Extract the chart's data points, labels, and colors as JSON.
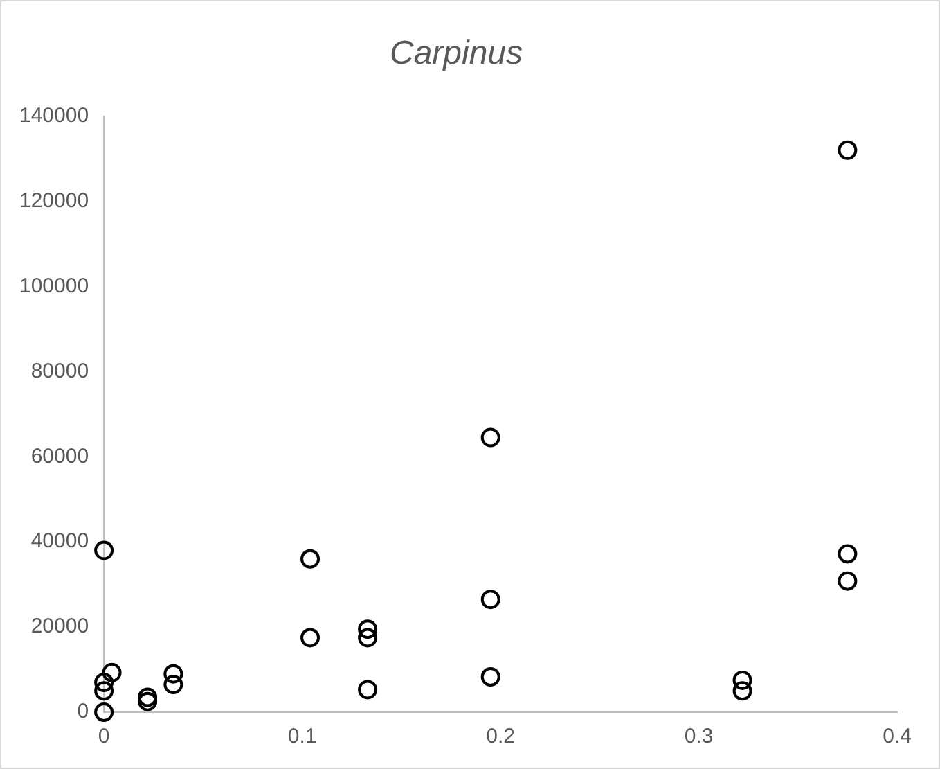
{
  "chart_data": {
    "type": "scatter",
    "title": "Carpinus",
    "x": [
      0,
      0,
      0,
      0,
      0.004,
      0.022,
      0.022,
      0.035,
      0.035,
      0.104,
      0.104,
      0.133,
      0.133,
      0.133,
      0.195,
      0.195,
      0.195,
      0.322,
      0.322,
      0.375,
      0.375,
      0.375
    ],
    "values": [
      38000,
      7000,
      5000,
      0,
      9300,
      3500,
      2500,
      9000,
      6500,
      36000,
      17500,
      19500,
      17500,
      5300,
      64500,
      26500,
      8300,
      7500,
      5000,
      132000,
      37200,
      30800
    ],
    "color": "#000000",
    "marker": "circle",
    "xlim": [
      0,
      0.4
    ],
    "xticks": [
      0,
      0.1,
      0.2,
      0.3,
      0.4
    ],
    "ylim": [
      0,
      140000
    ],
    "yticks": [
      0,
      20000,
      40000,
      60000,
      80000,
      100000,
      120000,
      140000
    ],
    "grid": false,
    "legend": false
  }
}
